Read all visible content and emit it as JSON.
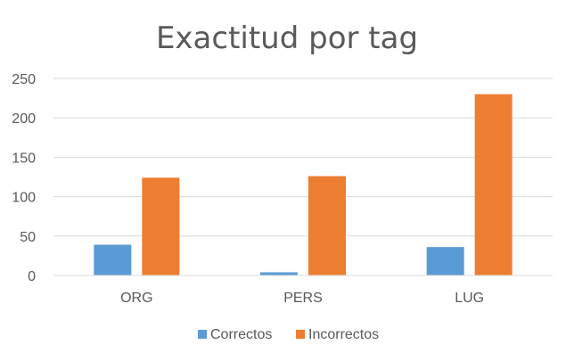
{
  "chart_data": {
    "type": "bar",
    "title": "Exactitud por tag",
    "categories": [
      "ORG",
      "PERS",
      "LUG"
    ],
    "series": [
      {
        "name": "Correctos",
        "color": "#5B9BD5",
        "values": [
          39,
          4,
          36
        ]
      },
      {
        "name": "Incorrectos",
        "color": "#ED7D31",
        "values": [
          124,
          126,
          230
        ]
      }
    ],
    "yticks": [
      "0",
      "50",
      "100",
      "150",
      "200",
      "250"
    ],
    "ylim": [
      0,
      250
    ],
    "grid": true,
    "legend": "bottom"
  }
}
